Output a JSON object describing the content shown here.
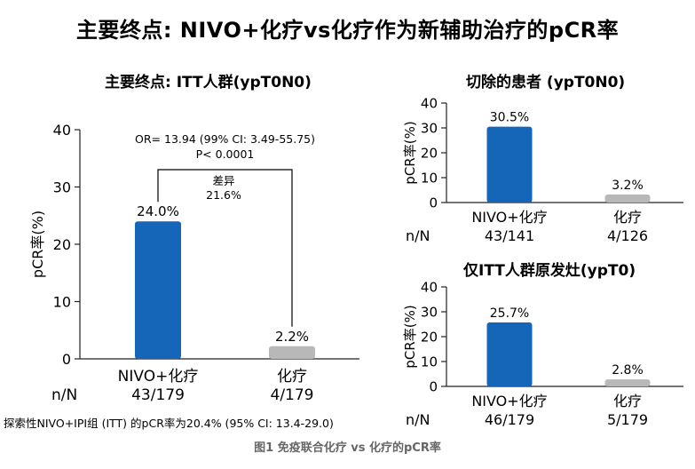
{
  "figure": {
    "main_title": "主要终点: NIVO+化疗vs化疗作为新辅助治疗的pCR率",
    "footnote": "探索性NIVO+IPI组 (ITT) 的pCR率为20.4% (95% CI: 13.4-29.0)",
    "caption": "图1 免疫联合化疗 vs 化疗的pCR率"
  },
  "colors": {
    "nivo": "#1565b8",
    "chemo": "#b8b8b8",
    "axis": "#222222"
  },
  "chart_data": [
    {
      "type": "bar",
      "title": "主要终点: ITT人群(ypT0N0)",
      "ylabel": "pCR率(%)",
      "ylim": [
        0,
        40
      ],
      "yticks": [
        0,
        10,
        20,
        30,
        40
      ],
      "categories": [
        "NIVO+化疗",
        "化疗"
      ],
      "values": [
        24.0,
        2.2
      ],
      "value_labels": [
        "24.0%",
        "2.2%"
      ],
      "nn_label": "n/N",
      "nn": [
        "43/179",
        "4/179"
      ],
      "annotation": {
        "or_text": "OR= 13.94 (99% CI: 3.49-55.75)",
        "p_text": "P< 0.0001",
        "diff_label": "差异",
        "diff_value": "21.6%"
      }
    },
    {
      "type": "bar",
      "title": "切除的患者 (ypT0N0)",
      "ylabel": "pCR率(%)",
      "ylim": [
        0,
        40
      ],
      "yticks": [
        0,
        10,
        20,
        30,
        40
      ],
      "categories": [
        "NIVO+化疗",
        "化疗"
      ],
      "values": [
        30.5,
        3.2
      ],
      "value_labels": [
        "30.5%",
        "3.2%"
      ],
      "nn_label": "n/N",
      "nn": [
        "43/141",
        "4/126"
      ]
    },
    {
      "type": "bar",
      "title": "仅ITT人群原发灶(ypT0)",
      "ylabel": "pCR率(%)",
      "ylim": [
        0,
        40
      ],
      "yticks": [
        0,
        10,
        20,
        30,
        40
      ],
      "categories": [
        "NIVO+化疗",
        "化疗"
      ],
      "values": [
        25.7,
        2.8
      ],
      "value_labels": [
        "25.7%",
        "2.8%"
      ],
      "nn_label": "n/N",
      "nn": [
        "46/179",
        "5/179"
      ]
    }
  ]
}
